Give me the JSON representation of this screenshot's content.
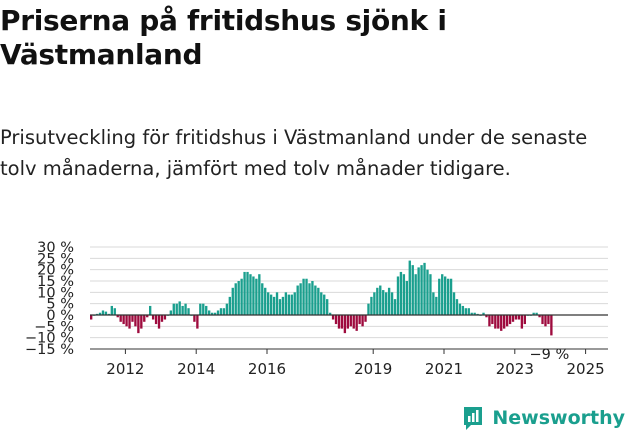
{
  "header": {
    "title": "Priserna på fritidshus sjönk i Västmanland",
    "subtitle": "Prisutveckling för fritidshus i Västmanland under de senaste tolv månaderna, jämfört med tolv månader tidigare."
  },
  "brand": {
    "name": "Newsworthy",
    "icon": "newsworthy-logo-icon",
    "color": "#1a9f8e"
  },
  "chart_data": {
    "type": "bar",
    "title": "",
    "xlabel": "",
    "ylabel": "",
    "ylim": [
      -15,
      30
    ],
    "yticks": [
      -15,
      -10,
      -5,
      0,
      5,
      10,
      15,
      20,
      25,
      30
    ],
    "ytick_labels": [
      "−15 %",
      "−10 %",
      "−5 %",
      "0 %",
      "5 %",
      "10 %",
      "15 %",
      "20 %",
      "25 %",
      "30 %"
    ],
    "xticks": [
      "2012",
      "2014",
      "2016",
      "2019",
      "2021",
      "2023",
      "2025"
    ],
    "grid": true,
    "legend": "none",
    "last_value_label": "−9 %",
    "colors": {
      "positive": "#1a9f8e",
      "negative": "#9e0b3e"
    },
    "x_start": "2011-01",
    "x_step": "month",
    "values": [
      -2,
      0,
      0.5,
      1,
      2,
      1.5,
      0.5,
      4,
      3,
      -1,
      -3,
      -4,
      -5,
      -6,
      -3,
      -5,
      -8,
      -6,
      -3,
      -1,
      4,
      -2,
      -4,
      -6,
      -3,
      -2,
      0,
      2,
      5,
      5,
      6,
      4,
      5,
      3,
      0,
      -3,
      -6,
      5,
      5,
      4,
      2,
      1,
      1,
      2,
      3,
      3,
      5,
      8,
      12,
      14,
      15,
      16,
      19,
      19,
      18,
      17,
      16,
      18,
      14,
      12,
      10,
      9,
      8,
      10,
      7,
      8,
      10,
      9,
      9,
      10,
      13,
      14,
      16,
      16,
      14,
      15,
      13,
      12,
      10,
      9,
      7,
      1,
      -2,
      -4,
      -6,
      -6,
      -8,
      -6,
      -5,
      -6,
      -7,
      -4,
      -5,
      -3,
      5,
      8,
      10,
      12,
      13,
      11,
      10,
      12,
      10,
      7,
      17,
      19,
      18,
      15,
      24,
      22,
      18,
      21,
      22,
      23,
      20,
      18,
      10,
      8,
      16,
      18,
      17,
      16,
      16,
      10,
      7,
      5,
      4,
      3,
      3,
      1,
      1,
      0.5,
      0,
      1,
      -1,
      -5,
      -4,
      -6,
      -6,
      -7,
      -6,
      -5,
      -4,
      -3,
      -2,
      -2,
      -6,
      -4,
      0,
      0,
      1,
      1,
      -1,
      -4,
      -5,
      -4,
      -9
    ]
  }
}
